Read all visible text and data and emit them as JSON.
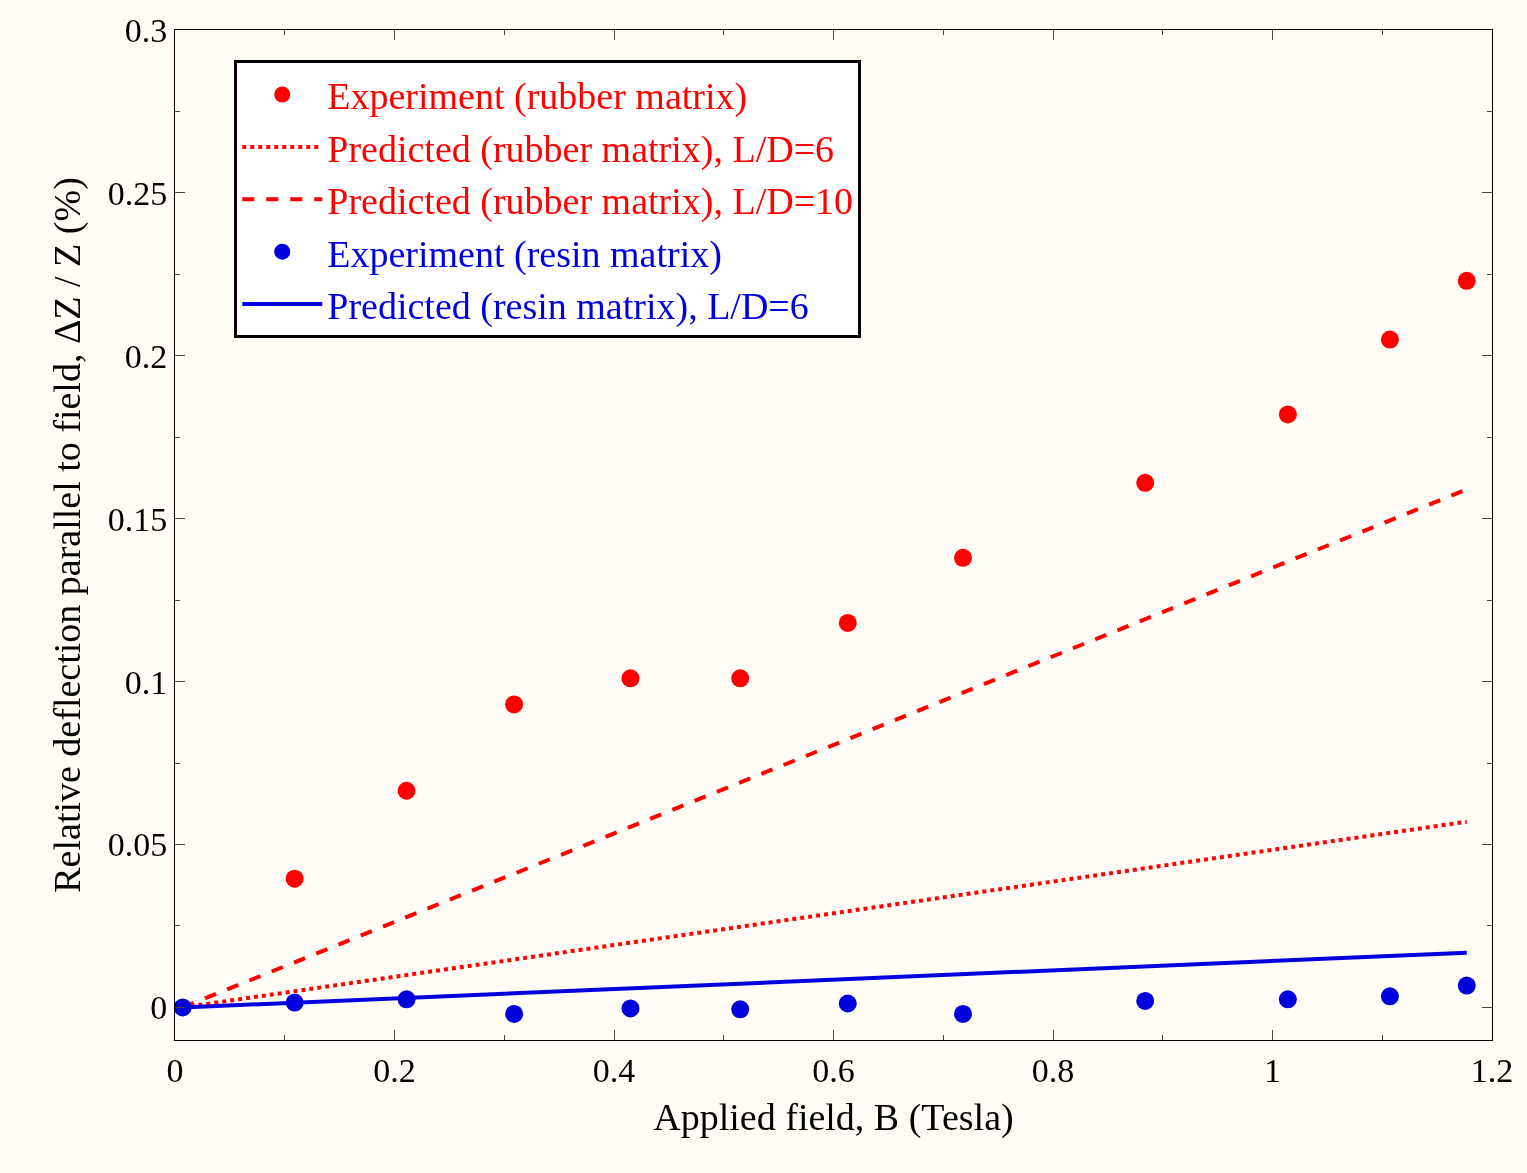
{
  "chart_data": {
    "type": "scatter",
    "xlabel": "Applied field, B (Tesla)",
    "ylabel": "Relative deflection parallel to field, ΔZ / Z (%)",
    "xlim": [
      0,
      1.2
    ],
    "xticks": [
      0,
      0.2,
      0.4,
      0.6,
      0.8,
      1,
      1.2
    ],
    "ylim": [
      -0.01,
      0.3
    ],
    "yticks": [
      0,
      0.05,
      0.1,
      0.15,
      0.2,
      0.25,
      0.3
    ],
    "grid": false,
    "legend": "top left",
    "series": [
      {
        "name": "Experiment (rubber matrix)",
        "marker": "circle",
        "color": "#ff0000",
        "x": [
          0.109,
          0.211,
          0.309,
          0.415,
          0.515,
          0.613,
          0.718,
          0.884,
          1.014,
          1.107,
          1.177
        ],
        "values": [
          0.0395,
          0.0665,
          0.093,
          0.101,
          0.101,
          0.118,
          0.138,
          0.161,
          0.182,
          0.205,
          0.223
        ]
      },
      {
        "name": "Predicted (rubber matrix), L/D=6",
        "type": "line",
        "line_style": "dotted",
        "color": "#ff0000",
        "x": [
          0.007,
          1.177
        ],
        "values": [
          0,
          0.057
        ]
      },
      {
        "name": "Predicted (rubber matrix), L/D=10",
        "type": "line",
        "line_style": "dashed",
        "color": "#ff0000",
        "x": [
          0.007,
          1.177
        ],
        "values": [
          0,
          0.159
        ]
      },
      {
        "name": "Experiment (resin matrix)",
        "marker": "circle",
        "color": "#0000dd",
        "x": [
          0.007,
          0.109,
          0.211,
          0.309,
          0.415,
          0.515,
          0.613,
          0.718,
          0.884,
          1.014,
          1.107,
          1.177
        ],
        "values": [
          0,
          0.0015,
          0.0025,
          -0.002,
          -0.0003,
          -0.0006,
          0.0012,
          -0.002,
          0.002,
          0.0025,
          0.0034,
          0.0067
        ]
      },
      {
        "name": "Predicted (resin matrix), L/D=6",
        "type": "line",
        "line_style": "solid",
        "color": "#0000dd",
        "x": [
          0.007,
          1.177
        ],
        "values": [
          0,
          0.0168
        ]
      }
    ]
  }
}
